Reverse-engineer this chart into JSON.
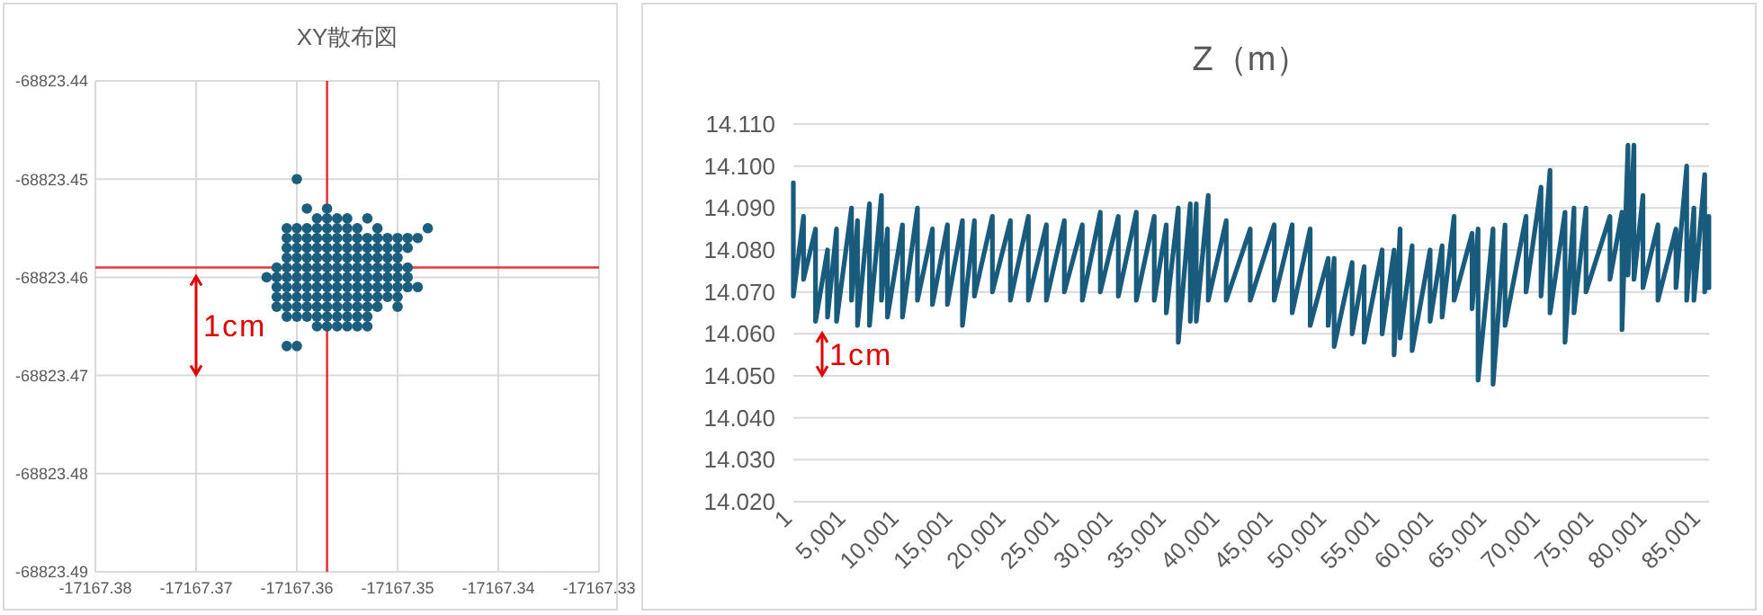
{
  "chart_data": [
    {
      "type": "scatter",
      "title": "XY散布図",
      "marker": "circle",
      "grid": true,
      "xlim": [
        -17167.38,
        -17167.33
      ],
      "xticks": [
        -17167.38,
        -17167.37,
        -17167.36,
        -17167.35,
        -17167.34,
        -17167.33
      ],
      "ylim": [
        -68823.49,
        -68823.44
      ],
      "yticks": [
        -68823.49,
        -68823.48,
        -68823.47,
        -68823.46,
        -68823.45,
        -68823.44
      ],
      "ref_lines": [
        {
          "axis": "x",
          "value": -17167.357,
          "color": "#e8363c"
        },
        {
          "axis": "y",
          "value": -68823.459,
          "color": "#e8363c"
        }
      ],
      "annotations": [
        "1cm"
      ],
      "series": [
        {
          "color": "#1b5e7e",
          "x": [
            -17167.36
          ],
          "values": [
            -68823.45
          ]
        },
        {
          "color": "#1b5e7e",
          "x": [
            -17167.359,
            -17167.357
          ],
          "values": [
            -68823.453,
            -68823.453
          ]
        },
        {
          "color": "#1b5e7e",
          "x": [
            -17167.358,
            -17167.357,
            -17167.356,
            -17167.355,
            -17167.353
          ],
          "values": [
            -68823.454,
            -68823.454,
            -68823.454,
            -68823.454,
            -68823.454
          ]
        },
        {
          "color": "#1b5e7e",
          "x": [
            -17167.361,
            -17167.36,
            -17167.359,
            -17167.358,
            -17167.357,
            -17167.356,
            -17167.355,
            -17167.354,
            -17167.352,
            -17167.347
          ],
          "values": [
            -68823.455,
            -68823.455,
            -68823.455,
            -68823.455,
            -68823.455,
            -68823.455,
            -68823.455,
            -68823.455,
            -68823.455,
            -68823.455
          ]
        },
        {
          "color": "#1b5e7e",
          "x": [
            -17167.361,
            -17167.36,
            -17167.359,
            -17167.358,
            -17167.357,
            -17167.356,
            -17167.355,
            -17167.354,
            -17167.353,
            -17167.352,
            -17167.351,
            -17167.35,
            -17167.349,
            -17167.348
          ],
          "values": [
            -68823.456,
            -68823.456,
            -68823.456,
            -68823.456,
            -68823.456,
            -68823.456,
            -68823.456,
            -68823.456,
            -68823.456,
            -68823.456,
            -68823.456,
            -68823.456,
            -68823.456,
            -68823.456
          ]
        },
        {
          "color": "#1b5e7e",
          "x": [
            -17167.361,
            -17167.36,
            -17167.359,
            -17167.358,
            -17167.357,
            -17167.356,
            -17167.355,
            -17167.354,
            -17167.353,
            -17167.352,
            -17167.351,
            -17167.35,
            -17167.349
          ],
          "values": [
            -68823.457,
            -68823.457,
            -68823.457,
            -68823.457,
            -68823.457,
            -68823.457,
            -68823.457,
            -68823.457,
            -68823.457,
            -68823.457,
            -68823.457,
            -68823.457,
            -68823.457
          ]
        },
        {
          "color": "#1b5e7e",
          "x": [
            -17167.361,
            -17167.36,
            -17167.359,
            -17167.358,
            -17167.357,
            -17167.356,
            -17167.355,
            -17167.354,
            -17167.353,
            -17167.352,
            -17167.351,
            -17167.35
          ],
          "values": [
            -68823.458,
            -68823.458,
            -68823.458,
            -68823.458,
            -68823.458,
            -68823.458,
            -68823.458,
            -68823.458,
            -68823.458,
            -68823.458,
            -68823.458,
            -68823.458
          ]
        },
        {
          "color": "#1b5e7e",
          "x": [
            -17167.362,
            -17167.361,
            -17167.36,
            -17167.359,
            -17167.358,
            -17167.357,
            -17167.356,
            -17167.355,
            -17167.354,
            -17167.353,
            -17167.352,
            -17167.351,
            -17167.35,
            -17167.349
          ],
          "values": [
            -68823.459,
            -68823.459,
            -68823.459,
            -68823.459,
            -68823.459,
            -68823.459,
            -68823.459,
            -68823.459,
            -68823.459,
            -68823.459,
            -68823.459,
            -68823.459,
            -68823.459,
            -68823.459
          ]
        },
        {
          "color": "#1b5e7e",
          "x": [
            -17167.363,
            -17167.362,
            -17167.361,
            -17167.36,
            -17167.359,
            -17167.358,
            -17167.357,
            -17167.356,
            -17167.355,
            -17167.354,
            -17167.353,
            -17167.352,
            -17167.351,
            -17167.35,
            -17167.349
          ],
          "values": [
            -68823.46,
            -68823.46,
            -68823.46,
            -68823.46,
            -68823.46,
            -68823.46,
            -68823.46,
            -68823.46,
            -68823.46,
            -68823.46,
            -68823.46,
            -68823.46,
            -68823.46,
            -68823.46,
            -68823.46
          ]
        },
        {
          "color": "#1b5e7e",
          "x": [
            -17167.362,
            -17167.361,
            -17167.36,
            -17167.359,
            -17167.358,
            -17167.357,
            -17167.356,
            -17167.355,
            -17167.354,
            -17167.353,
            -17167.352,
            -17167.351,
            -17167.35,
            -17167.349,
            -17167.348
          ],
          "values": [
            -68823.461,
            -68823.461,
            -68823.461,
            -68823.461,
            -68823.461,
            -68823.461,
            -68823.461,
            -68823.461,
            -68823.461,
            -68823.461,
            -68823.461,
            -68823.461,
            -68823.461,
            -68823.461,
            -68823.461
          ]
        },
        {
          "color": "#1b5e7e",
          "x": [
            -17167.362,
            -17167.361,
            -17167.36,
            -17167.359,
            -17167.358,
            -17167.357,
            -17167.356,
            -17167.355,
            -17167.354,
            -17167.353,
            -17167.352,
            -17167.351,
            -17167.35
          ],
          "values": [
            -68823.462,
            -68823.462,
            -68823.462,
            -68823.462,
            -68823.462,
            -68823.462,
            -68823.462,
            -68823.462,
            -68823.462,
            -68823.462,
            -68823.462,
            -68823.462,
            -68823.462
          ]
        },
        {
          "color": "#1b5e7e",
          "x": [
            -17167.362,
            -17167.361,
            -17167.36,
            -17167.359,
            -17167.358,
            -17167.357,
            -17167.356,
            -17167.355,
            -17167.354,
            -17167.353,
            -17167.352,
            -17167.35
          ],
          "values": [
            -68823.463,
            -68823.463,
            -68823.463,
            -68823.463,
            -68823.463,
            -68823.463,
            -68823.463,
            -68823.463,
            -68823.463,
            -68823.463,
            -68823.463,
            -68823.463
          ]
        },
        {
          "color": "#1b5e7e",
          "x": [
            -17167.361,
            -17167.36,
            -17167.359,
            -17167.358,
            -17167.357,
            -17167.356,
            -17167.355,
            -17167.354,
            -17167.353
          ],
          "values": [
            -68823.464,
            -68823.464,
            -68823.464,
            -68823.464,
            -68823.464,
            -68823.464,
            -68823.464,
            -68823.464,
            -68823.464
          ]
        },
        {
          "color": "#1b5e7e",
          "x": [
            -17167.358,
            -17167.357,
            -17167.356,
            -17167.355,
            -17167.354,
            -17167.353
          ],
          "values": [
            -68823.465,
            -68823.465,
            -68823.465,
            -68823.465,
            -68823.465,
            -68823.465
          ]
        },
        {
          "color": "#1b5e7e",
          "x": [
            -17167.361,
            -17167.36
          ],
          "values": [
            -68823.467,
            -68823.467
          ]
        }
      ]
    },
    {
      "type": "line",
      "title": "Z（m）",
      "marker": "none",
      "line_style": "solid",
      "grid": "y",
      "xlim": [
        1,
        85700
      ],
      "xticks": [
        1,
        {
          "value": 5001,
          "label": "5,001"
        },
        {
          "value": 10001,
          "label": "10,001"
        },
        {
          "value": 15001,
          "label": "15,001"
        },
        {
          "value": 20001,
          "label": "20,001"
        },
        {
          "value": 25001,
          "label": "25,001"
        },
        {
          "value": 30001,
          "label": "30,001"
        },
        {
          "value": 35001,
          "label": "35,001"
        },
        {
          "value": 40001,
          "label": "40,001"
        },
        {
          "value": 45001,
          "label": "45,001"
        },
        {
          "value": 50001,
          "label": "50,001"
        },
        {
          "value": 55001,
          "label": "55,001"
        },
        {
          "value": 60001,
          "label": "60,001"
        },
        {
          "value": 65001,
          "label": "65,001"
        },
        {
          "value": 70001,
          "label": "70,001"
        },
        {
          "value": 75001,
          "label": "75,001"
        },
        {
          "value": 80001,
          "label": "80,001"
        },
        {
          "value": 85001,
          "label": "85,001"
        }
      ],
      "ylim": [
        14.02,
        14.11
      ],
      "yticks": [
        {
          "value": 14.02,
          "label": "14.020"
        },
        {
          "value": 14.03,
          "label": "14.030"
        },
        {
          "value": 14.04,
          "label": "14.040"
        },
        {
          "value": 14.05,
          "label": "14.050"
        },
        {
          "value": 14.06,
          "label": "14.060"
        },
        {
          "value": 14.07,
          "label": "14.070"
        },
        {
          "value": 14.08,
          "label": "14.080"
        },
        {
          "value": 14.09,
          "label": "14.090"
        },
        {
          "value": 14.1,
          "label": "14.100"
        },
        {
          "value": 14.11,
          "label": "14.110"
        }
      ],
      "annotations": [
        "1cm"
      ],
      "series": [
        {
          "color": "#195b7c",
          "x": [
            1,
            1,
            955,
            955,
            2077,
            2077,
            3200,
            3200,
            4041,
            4041,
            5444,
            5444,
            6006,
            6006,
            7127,
            7127,
            8250,
            8250,
            8810,
            8810,
            10214,
            10214,
            11617,
            11617,
            13019,
            13019,
            14423,
            14423,
            15826,
            15826,
            16948,
            16948,
            18631,
            18631,
            20315,
            20315,
            21998,
            21998,
            23681,
            23681,
            25364,
            25364,
            27048,
            27048,
            28731,
            28731,
            30415,
            30415,
            32098,
            32098,
            33781,
            33781,
            34903,
            34903,
            36027,
            36027,
            37149,
            37149,
            37711,
            37711,
            38833,
            38833,
            40516,
            40516,
            42761,
            42761,
            45005,
            45005,
            46688,
            46688,
            48371,
            48371,
            50055,
            50055,
            50616,
            50616,
            52300,
            52300,
            53422,
            53422,
            55105,
            55105,
            56227,
            56227,
            56788,
            56788,
            57912,
            57912,
            59596,
            59596,
            60718,
            60718,
            61840,
            61840,
            63523,
            63523,
            64085,
            64085,
            65488,
            65488,
            66610,
            66610,
            68575,
            68575,
            69977,
            69977,
            70819,
            70819,
            72222,
            72222,
            73064,
            73064,
            74186,
            74186,
            76431,
            76431,
            77553,
            77553,
            78114,
            78114,
            78675,
            78675,
            79517,
            79517,
            80919,
            80919,
            82603,
            82603,
            83613,
            83613,
            84286,
            84286,
            85296,
            85296,
            85689,
            85689
          ],
          "values": [
            14.096,
            14.069,
            14.088,
            14.073,
            14.085,
            14.063,
            14.08,
            14.064,
            14.085,
            14.063,
            14.09,
            14.068,
            14.087,
            14.062,
            14.091,
            14.062,
            14.093,
            14.068,
            14.085,
            14.064,
            14.086,
            14.064,
            14.09,
            14.068,
            14.085,
            14.067,
            14.086,
            14.067,
            14.087,
            14.062,
            14.087,
            14.069,
            14.088,
            14.07,
            14.087,
            14.068,
            14.088,
            14.068,
            14.086,
            14.068,
            14.087,
            14.07,
            14.086,
            14.068,
            14.089,
            14.07,
            14.088,
            14.069,
            14.089,
            14.068,
            14.088,
            14.068,
            14.086,
            14.065,
            14.09,
            14.058,
            14.091,
            14.063,
            14.091,
            14.063,
            14.093,
            14.068,
            14.087,
            14.068,
            14.085,
            14.068,
            14.086,
            14.068,
            14.086,
            14.065,
            14.085,
            14.062,
            14.078,
            14.062,
            14.078,
            14.057,
            14.077,
            14.06,
            14.076,
            14.058,
            14.08,
            14.06,
            14.08,
            14.055,
            14.085,
            14.059,
            14.081,
            14.056,
            14.08,
            14.063,
            14.081,
            14.064,
            14.088,
            14.068,
            14.084,
            14.066,
            14.085,
            14.049,
            14.085,
            14.048,
            14.086,
            14.062,
            14.088,
            14.07,
            14.095,
            14.069,
            14.099,
            14.065,
            14.089,
            14.058,
            14.09,
            14.065,
            14.09,
            14.07,
            14.088,
            14.073,
            14.089,
            14.061,
            14.105,
            14.074,
            14.105,
            14.073,
            14.093,
            14.071,
            14.086,
            14.068,
            14.085,
            14.071,
            14.1,
            14.068,
            14.09,
            14.068,
            14.098,
            14.07,
            14.088,
            14.071
          ]
        }
      ]
    }
  ]
}
